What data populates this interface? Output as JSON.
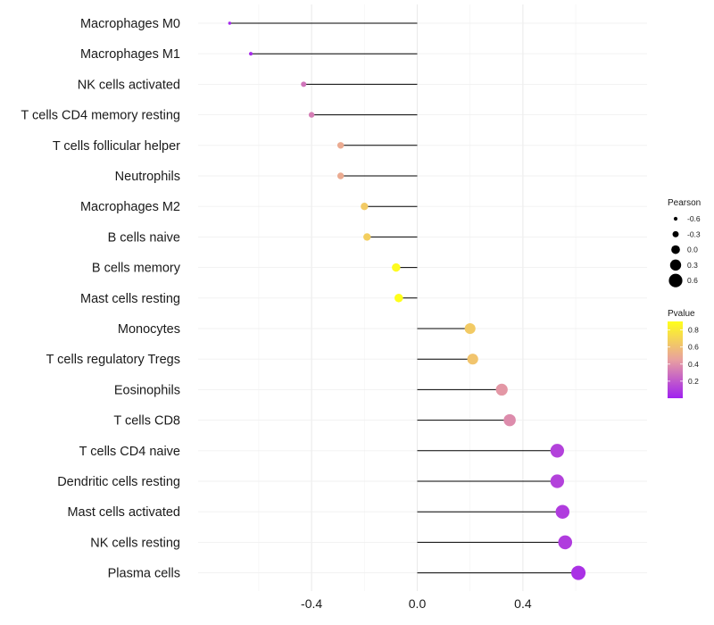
{
  "chart_data": {
    "type": "lollipop",
    "title": "",
    "xlabel": "",
    "ylabel": "",
    "xlim": [
      -0.87,
      0.87
    ],
    "x_ticks": [
      -0.4,
      0.0,
      0.4
    ],
    "x_tick_labels": [
      "-0.4",
      "0.0",
      "0.4"
    ],
    "minor_grid": [
      -0.6,
      -0.2,
      0.2,
      0.6
    ],
    "categories": [
      "Macrophages M0",
      "Macrophages M1",
      "NK cells activated",
      "T cells CD4 memory resting",
      "T cells follicular helper",
      "Neutrophils",
      "Macrophages M2",
      "B cells naive",
      "B cells memory",
      "Mast cells resting",
      "Monocytes",
      "T cells regulatory  Tregs ",
      "Eosinophils",
      "T cells CD8",
      "T cells CD4 naive",
      "Dendritic cells resting",
      "Mast cells activated",
      "NK cells resting",
      "Plasma cells"
    ],
    "pearson": [
      -0.71,
      -0.63,
      -0.43,
      -0.4,
      -0.29,
      -0.29,
      -0.2,
      -0.19,
      -0.08,
      -0.07,
      0.2,
      0.21,
      0.32,
      0.35,
      0.53,
      0.53,
      0.55,
      0.56,
      0.61
    ],
    "pvalue": [
      0.02,
      0.04,
      0.3,
      0.33,
      0.5,
      0.5,
      0.65,
      0.67,
      0.88,
      0.9,
      0.65,
      0.62,
      0.42,
      0.38,
      0.12,
      0.12,
      0.1,
      0.1,
      0.06
    ],
    "legend": {
      "size_title": "Pearson",
      "size_labels": [
        "-0.6",
        "-0.3",
        "0.0",
        "0.3",
        "0.6"
      ],
      "size_values": [
        -0.6,
        -0.3,
        0.0,
        0.3,
        0.6
      ],
      "color_title": "Pvalue",
      "color_labels": [
        "0.8",
        "0.6",
        "0.4",
        "0.2"
      ],
      "color_values": [
        0.8,
        0.6,
        0.4,
        0.2
      ],
      "color_range": [
        0.0,
        0.9
      ],
      "colors": {
        "low": "#a020f0",
        "mid": "#e8a0a0",
        "high": "#ffff1a"
      }
    }
  }
}
